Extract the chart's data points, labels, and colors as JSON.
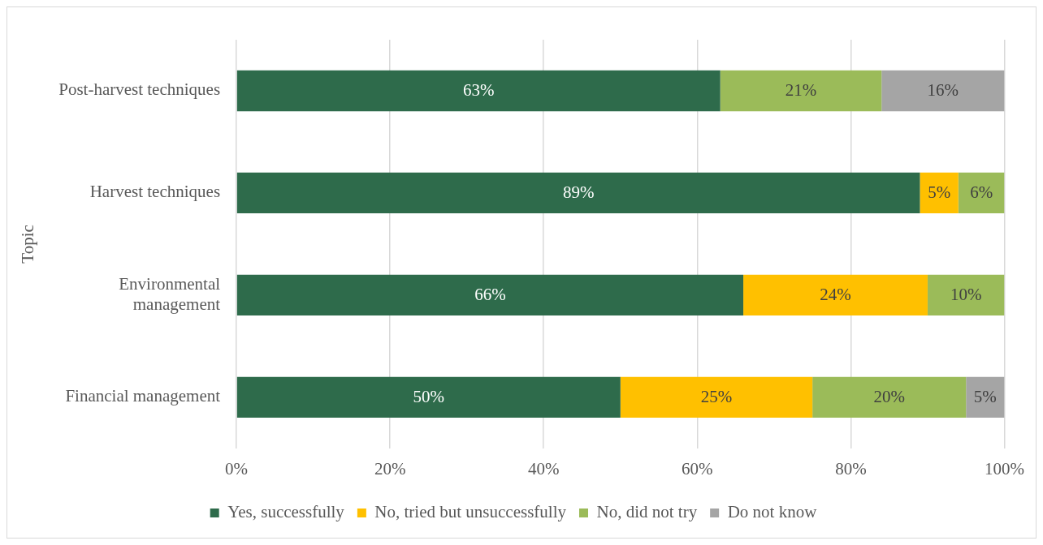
{
  "chart_data": {
    "type": "bar",
    "orientation": "horizontal",
    "stacked": true,
    "ylabel": "Topic",
    "categories": [
      "Post-harvest techniques",
      "Harvest techniques",
      "Environmental management",
      "Financial management"
    ],
    "series": [
      {
        "name": "Yes, successfully",
        "color": "#2e6b4b",
        "values": [
          63,
          89,
          66,
          50
        ],
        "value_labels": [
          "63%",
          "89%",
          "66%",
          "50%"
        ]
      },
      {
        "name": "No, tried but unsuccessfully",
        "color": "#ffc000",
        "values": [
          null,
          5,
          24,
          25
        ],
        "value_labels": [
          null,
          "5%",
          "24%",
          "25%"
        ]
      },
      {
        "name": "No, did not try",
        "color": "#9bbb59",
        "values": [
          21,
          6,
          10,
          20
        ],
        "value_labels": [
          "21%",
          "6%",
          "10%",
          "20%"
        ]
      },
      {
        "name": "Do not know",
        "color": "#a5a5a5",
        "values": [
          16,
          null,
          null,
          5
        ],
        "value_labels": [
          "16%",
          null,
          null,
          "5%"
        ]
      }
    ],
    "xlim": [
      0,
      100
    ],
    "xticks": [
      {
        "value": 0,
        "label": "0%"
      },
      {
        "value": 20,
        "label": "20%"
      },
      {
        "value": 40,
        "label": "40%"
      },
      {
        "value": 60,
        "label": "60%"
      },
      {
        "value": 80,
        "label": "80%"
      },
      {
        "value": 100,
        "label": "100%"
      }
    ],
    "grid": "x",
    "legend": "bottom"
  }
}
